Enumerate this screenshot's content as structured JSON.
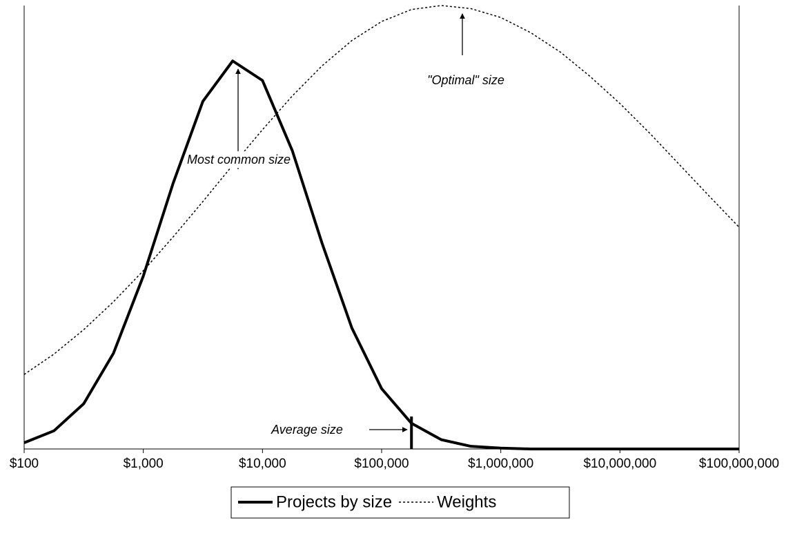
{
  "chart_data": {
    "type": "line",
    "xscale": "log",
    "x": [
      100,
      178,
      316,
      562,
      1000,
      1778,
      3162,
      5623,
      10000,
      17783,
      31623,
      56234,
      100000,
      177828,
      316228,
      562341,
      1000000,
      1778279,
      3162278,
      5623413,
      10000000,
      17782794,
      31622777,
      56234133,
      100000000
    ],
    "xlim": [
      100,
      100000000
    ],
    "xticks": [
      {
        "value": 100,
        "label": "$100"
      },
      {
        "value": 1000,
        "label": "$1,000"
      },
      {
        "value": 10000,
        "label": "$10,000"
      },
      {
        "value": 100000,
        "label": "$100,000"
      },
      {
        "value": 1000000,
        "label": "$1,000,000"
      },
      {
        "value": 10000000,
        "label": "$10,000,000"
      },
      {
        "value": 100000000,
        "label": "$100,000,000"
      }
    ],
    "ylim": [
      0,
      1
    ],
    "series": [
      {
        "name": "Projects by size",
        "color": "#000000",
        "style": "solid",
        "values": [
          0.014,
          0.041,
          0.102,
          0.216,
          0.39,
          0.599,
          0.784,
          0.875,
          0.831,
          0.673,
          0.464,
          0.273,
          0.136,
          0.058,
          0.021,
          0.006,
          0.002,
          0,
          0,
          0,
          0,
          0,
          0,
          0,
          0
        ]
      },
      {
        "name": "Weights",
        "color": "#000000",
        "style": "dotted",
        "values": [
          0.168,
          0.214,
          0.269,
          0.332,
          0.402,
          0.478,
          0.558,
          0.64,
          0.72,
          0.796,
          0.864,
          0.921,
          0.964,
          0.991,
          1.0,
          0.993,
          0.973,
          0.939,
          0.895,
          0.84,
          0.779,
          0.712,
          0.641,
          0.57,
          0.5
        ]
      }
    ],
    "average_size": 178000,
    "annotations": [
      "Most common size",
      "\"Optimal\" size",
      "Average size"
    ],
    "legend": "bottom"
  }
}
